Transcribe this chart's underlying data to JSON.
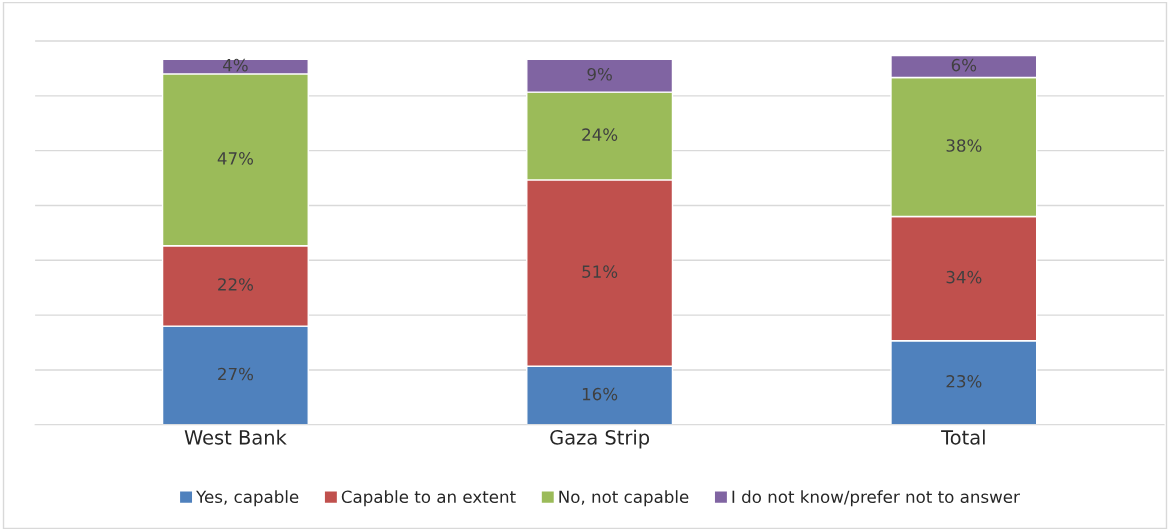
{
  "chart_data": {
    "type": "bar",
    "stacked": true,
    "categories": [
      "West Bank",
      "Gaza Strip",
      "Total"
    ],
    "series": [
      {
        "name": "Yes, capable",
        "color": "#4f81bd",
        "values": [
          27,
          16,
          23
        ],
        "value_labels": [
          "27%",
          "16%",
          "23%"
        ]
      },
      {
        "name": "Capable to an extent",
        "color": "#c0504d",
        "values": [
          22,
          51,
          34
        ],
        "value_labels": [
          "22%",
          "51%",
          "34%"
        ]
      },
      {
        "name": "No, not capable",
        "color": "#9bbb59",
        "values": [
          47,
          24,
          38
        ],
        "value_labels": [
          "47%",
          "24%",
          "38%"
        ]
      },
      {
        "name": "I do not know/prefer not to answer",
        "color": "#8064a2",
        "values": [
          4,
          9,
          6
        ],
        "value_labels": [
          "4%",
          "9%",
          "6%"
        ]
      }
    ],
    "tick_labels": "x",
    "grid": "y",
    "legend": "bottom"
  }
}
